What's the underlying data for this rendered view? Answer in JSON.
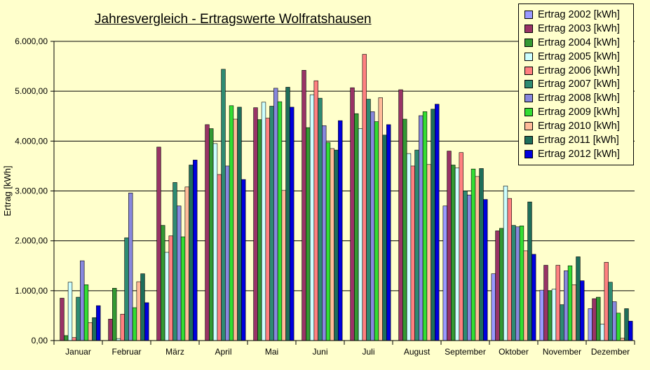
{
  "chart_data": {
    "type": "bar",
    "title": "Jahresvergleich - Ertragswerte Wolfratshausen",
    "xlabel": "",
    "ylabel": "Ertrag [kWh]",
    "ylim": [
      0,
      6000
    ],
    "yticks": [
      0,
      1000,
      2000,
      3000,
      4000,
      5000,
      6000
    ],
    "ytick_labels": [
      "0,00",
      "1.000,00",
      "2.000,00",
      "3.000,00",
      "4.000,00",
      "5.000,00",
      "6.000,00"
    ],
    "grid": true,
    "legend_position": "top-right",
    "categories": [
      "Januar",
      "Februar",
      "März",
      "April",
      "Mai",
      "Juni",
      "Juli",
      "August",
      "September",
      "Oktober",
      "November",
      "Dezember"
    ],
    "series": [
      {
        "name": "Ertrag 2002 [kWh]",
        "color": "#9999FF",
        "values": [
          0,
          0,
          0,
          0,
          0,
          0,
          0,
          0,
          2700,
          1340,
          1010,
          640
        ]
      },
      {
        "name": "Ertrag 2003 [kWh]",
        "color": "#993366",
        "values": [
          850,
          430,
          3880,
          4330,
          4670,
          5420,
          5070,
          5030,
          3800,
          2200,
          1510,
          840
        ]
      },
      {
        "name": "Ertrag 2004 [kWh]",
        "color": "#339933",
        "values": [
          100,
          1050,
          2310,
          4250,
          4430,
          4270,
          4550,
          4440,
          3520,
          2250,
          1000,
          870
        ]
      },
      {
        "name": "Ertrag 2005 [kWh]",
        "color": "#CCFFFF",
        "values": [
          1170,
          40,
          1770,
          3950,
          4780,
          4930,
          4250,
          3750,
          3460,
          3100,
          1030,
          330
        ]
      },
      {
        "name": "Ertrag 2006 [kWh]",
        "color": "#FF8080",
        "values": [
          60,
          530,
          2100,
          3330,
          4460,
          5210,
          5740,
          3500,
          3770,
          2850,
          1510,
          1570
        ]
      },
      {
        "name": "Ertrag 2007 [kWh]",
        "color": "#2E8B72",
        "values": [
          870,
          2060,
          3170,
          5440,
          4700,
          4860,
          4840,
          3820,
          3000,
          2310,
          720,
          1170
        ]
      },
      {
        "name": "Ertrag 2008 [kWh]",
        "color": "#8888DD",
        "values": [
          1600,
          2960,
          2700,
          3500,
          5060,
          4310,
          4590,
          4510,
          2920,
          2280,
          1400,
          780
        ]
      },
      {
        "name": "Ertrag 2009 [kWh]",
        "color": "#33DD33",
        "values": [
          1120,
          660,
          2080,
          4710,
          4790,
          3970,
          4390,
          4590,
          3440,
          2300,
          1500,
          550
        ]
      },
      {
        "name": "Ertrag 2010 [kWh]",
        "color": "#FFBB99",
        "values": [
          360,
          1180,
          3080,
          4440,
          3010,
          3850,
          4870,
          3530,
          3290,
          1800,
          1120,
          50
        ]
      },
      {
        "name": "Ertrag 2011 [kWh]",
        "color": "#1E6E5A",
        "values": [
          460,
          1340,
          3520,
          4680,
          5080,
          3820,
          4120,
          4640,
          3450,
          2780,
          1680,
          640
        ]
      },
      {
        "name": "Ertrag 2012 [kWh]",
        "color": "#0000DD",
        "values": [
          700,
          760,
          3620,
          3230,
          4680,
          4410,
          4330,
          4740,
          2830,
          1730,
          1200,
          390
        ]
      }
    ]
  }
}
